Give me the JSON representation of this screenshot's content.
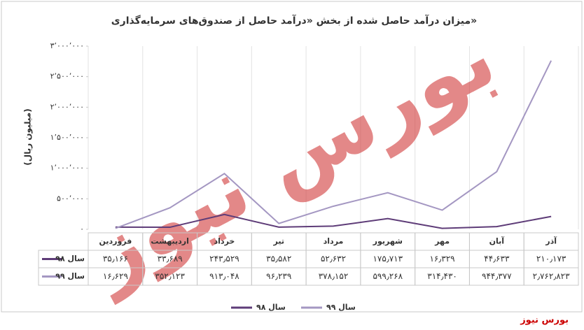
{
  "chart_data": {
    "type": "line",
    "title": "میزان درآمد حاصل شده از بخش «درآمد حاصل از صندوق‌های سرمایه‌گذاری»",
    "y_label": "(میلیون ریال)",
    "watermark": "بورس نیوز",
    "source": "بورس نیوز",
    "categories": [
      "فروردین",
      "اردیبهشت",
      "خرداد",
      "تیر",
      "مرداد",
      "شهریور",
      "مهر",
      "آبان",
      "آذر"
    ],
    "series": [
      {
        "name": "سال ۹۸",
        "color": "#5e3c78",
        "values": [
          35166,
          33689,
          243529,
          35582,
          52632,
          175713,
          16329,
          44633,
          210173
        ],
        "value_labels": [
          "۳۵٫۱۶۶",
          "۳۳٫۶۸۹",
          "۲۴۳٫۵۲۹",
          "۳۵٫۵۸۲",
          "۵۲٫۶۳۲",
          "۱۷۵٫۷۱۳",
          "۱۶٫۳۲۹",
          "۴۴٫۶۳۳",
          "۲۱۰٫۱۷۳"
        ]
      },
      {
        "name": "سال ۹۹",
        "color": "#a497c2",
        "values": [
          16629,
          352123,
          913048,
          96239,
          378152,
          599268,
          314430,
          944377,
          2762823
        ],
        "value_labels": [
          "۱۶٫۶۲۹",
          "۳۵۲٫۱۲۳",
          "۹۱۳٫۰۴۸",
          "۹۶٫۲۳۹",
          "۳۷۸٫۱۵۲",
          "۵۹۹٫۲۶۸",
          "۳۱۴٫۴۳۰",
          "۹۴۴٫۳۷۷",
          "۲٫۷۶۲٫۸۲۳"
        ]
      }
    ],
    "ylim": [
      0,
      3000000
    ],
    "yticks": [
      {
        "value": 0,
        "label": "۰"
      },
      {
        "value": 500000,
        "label": "۵۰۰٬۰۰۰"
      },
      {
        "value": 1000000,
        "label": "۱٬۰۰۰٬۰۰۰"
      },
      {
        "value": 1500000,
        "label": "۱٬۵۰۰٬۰۰۰"
      },
      {
        "value": 2000000,
        "label": "۲٬۰۰۰٬۰۰۰"
      },
      {
        "value": 2500000,
        "label": "۲٬۵۰۰٬۰۰۰"
      },
      {
        "value": 3000000,
        "label": "۳٬۰۰۰٬۰۰۰"
      }
    ]
  }
}
